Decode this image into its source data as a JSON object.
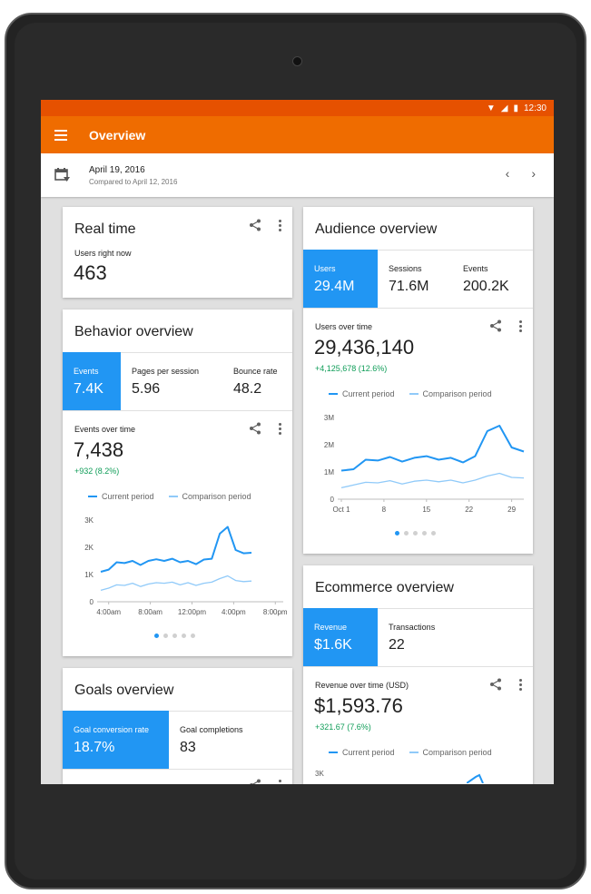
{
  "status": {
    "time": "12:30"
  },
  "appbar": {
    "title": "Overview"
  },
  "datebar": {
    "date": "April 19, 2016",
    "compare": "Compared to April 12, 2016",
    "prev": "‹",
    "next": "›"
  },
  "realtime": {
    "title": "Real time",
    "label": "Users right now",
    "value": "463"
  },
  "behavior": {
    "title": "Behavior overview",
    "metrics": [
      {
        "label": "Events",
        "value": "7.4K"
      },
      {
        "label": "Pages per session",
        "value": "5.96"
      },
      {
        "label": "Bounce rate",
        "value": "48.2"
      }
    ],
    "chart_label": "Events over time",
    "total": "7,438",
    "delta": "+932 (8.2%)",
    "legend_current": "Current period",
    "legend_comparison": "Comparison period"
  },
  "goals": {
    "title": "Goals overview",
    "metrics": [
      {
        "label": "Goal conversion rate",
        "value": "18.7%"
      },
      {
        "label": "Goal completions",
        "value": "83"
      }
    ]
  },
  "audience": {
    "title": "Audience overview",
    "metrics": [
      {
        "label": "Users",
        "value": "29.4M"
      },
      {
        "label": "Sessions",
        "value": "71.6M"
      },
      {
        "label": "Events",
        "value": "200.2K"
      }
    ],
    "chart_label": "Users over time",
    "total": "29,436,140",
    "delta": "+4,125,678 (12.6%)",
    "legend_current": "Current period",
    "legend_comparison": "Comparison period"
  },
  "ecommerce": {
    "title": "Ecommerce overview",
    "metrics": [
      {
        "label": "Revenue",
        "value": "$1.6K"
      },
      {
        "label": "Transactions",
        "value": "22"
      }
    ],
    "chart_label": "Revenue over time (USD)",
    "total": "$1,593.76",
    "delta": "+321.67 (7.6%)",
    "legend_current": "Current period",
    "legend_comparison": "Comparison period",
    "y_top": "3K"
  },
  "colors": {
    "accent": "#2196f3",
    "comparison": "#90caf9",
    "appbar": "#ef6c00",
    "statusbar": "#e65100",
    "positive": "#0f9d58"
  },
  "chart_data": [
    {
      "type": "line",
      "x_ticks": [
        "4:00am",
        "8:00am",
        "12:00pm",
        "4:00pm",
        "8:00pm"
      ],
      "y_ticks": [
        "0",
        "1K",
        "2K",
        "3K"
      ],
      "ylim": [
        0,
        3000
      ],
      "xlim": [
        0,
        23
      ],
      "series": [
        {
          "name": "Current period",
          "x": [
            0,
            1,
            2,
            3,
            4,
            5,
            6,
            7,
            8,
            9,
            10,
            11,
            12,
            13,
            14,
            15,
            16,
            17,
            18,
            19,
            20,
            21,
            22,
            23
          ],
          "values": [
            1100,
            1180,
            1450,
            1420,
            1500,
            1350,
            1500,
            1560,
            1500,
            1580,
            1450,
            1500,
            1380,
            1550,
            1580,
            2500,
            2750,
            1900,
            1780,
            1800,
            null,
            null,
            null,
            null
          ]
        },
        {
          "name": "Comparison period",
          "x": [
            0,
            1,
            2,
            3,
            4,
            5,
            6,
            7,
            8,
            9,
            10,
            11,
            12,
            13,
            14,
            15,
            16,
            17,
            18,
            19,
            20,
            21,
            22,
            23
          ],
          "values": [
            420,
            500,
            620,
            600,
            680,
            560,
            650,
            700,
            680,
            720,
            620,
            700,
            600,
            680,
            720,
            850,
            950,
            780,
            740,
            760,
            null,
            null,
            null,
            null
          ]
        }
      ]
    },
    {
      "type": "line",
      "x_ticks": [
        "Oct 1",
        "8",
        "15",
        "22",
        "29"
      ],
      "x_tick_positions": [
        1,
        8,
        15,
        22,
        29
      ],
      "y_ticks": [
        "0",
        "1M",
        "2M",
        "3M"
      ],
      "ylim": [
        0,
        3000000
      ],
      "xlim": [
        1,
        31
      ],
      "series": [
        {
          "name": "Current period",
          "x": [
            1,
            3,
            5,
            7,
            9,
            11,
            13,
            15,
            17,
            19,
            21,
            23,
            25,
            27,
            29,
            31
          ],
          "values": [
            1050000,
            1100000,
            1450000,
            1420000,
            1550000,
            1380000,
            1520000,
            1580000,
            1450000,
            1520000,
            1350000,
            1580000,
            2500000,
            2700000,
            1900000,
            1750000
          ]
        },
        {
          "name": "Comparison period",
          "x": [
            1,
            3,
            5,
            7,
            9,
            11,
            13,
            15,
            17,
            19,
            21,
            23,
            25,
            27,
            29,
            31
          ],
          "values": [
            420000,
            520000,
            620000,
            600000,
            680000,
            560000,
            660000,
            700000,
            640000,
            700000,
            600000,
            700000,
            850000,
            950000,
            800000,
            780000
          ]
        }
      ]
    }
  ]
}
